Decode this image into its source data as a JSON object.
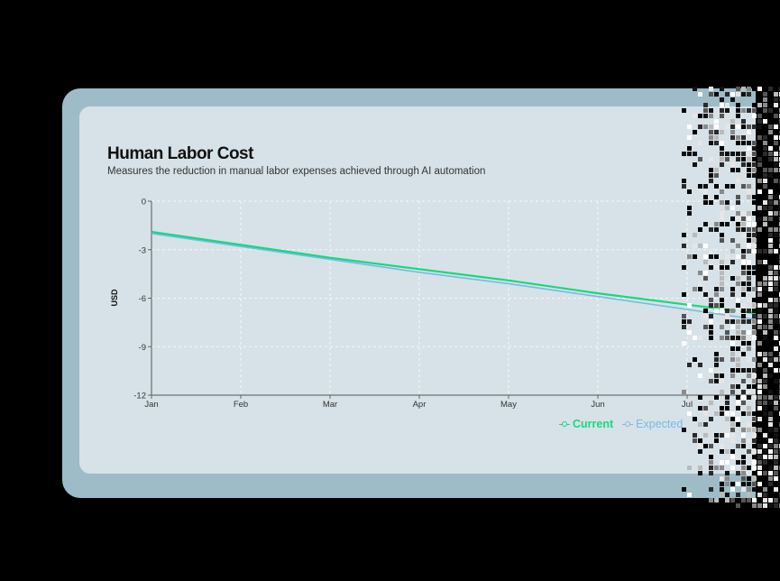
{
  "chart_data": {
    "type": "line",
    "title": "Human Labor Cost",
    "subtitle": "Measures the reduction in manual labor expenses achieved through AI automation",
    "xlabel": "",
    "ylabel": "USD",
    "categories": [
      "Jan",
      "Feb",
      "Mar",
      "Apr",
      "May",
      "Jun",
      "Jul"
    ],
    "yticks": [
      "0",
      "-3",
      "-6",
      "-9",
      "-12"
    ],
    "ylim": [
      -12,
      0
    ],
    "grid": true,
    "legend_position": "bottom-right",
    "series": [
      {
        "name": "Current",
        "color": "#16d97c",
        "values": [
          -1.9,
          -2.7,
          -3.5,
          -4.2,
          -4.9,
          -5.7,
          -6.4
        ]
      },
      {
        "name": "Expected",
        "color": "#7ab8e8",
        "values": [
          -2.0,
          -2.8,
          -3.6,
          -4.4,
          -5.1,
          -5.9,
          -6.7
        ]
      }
    ]
  }
}
